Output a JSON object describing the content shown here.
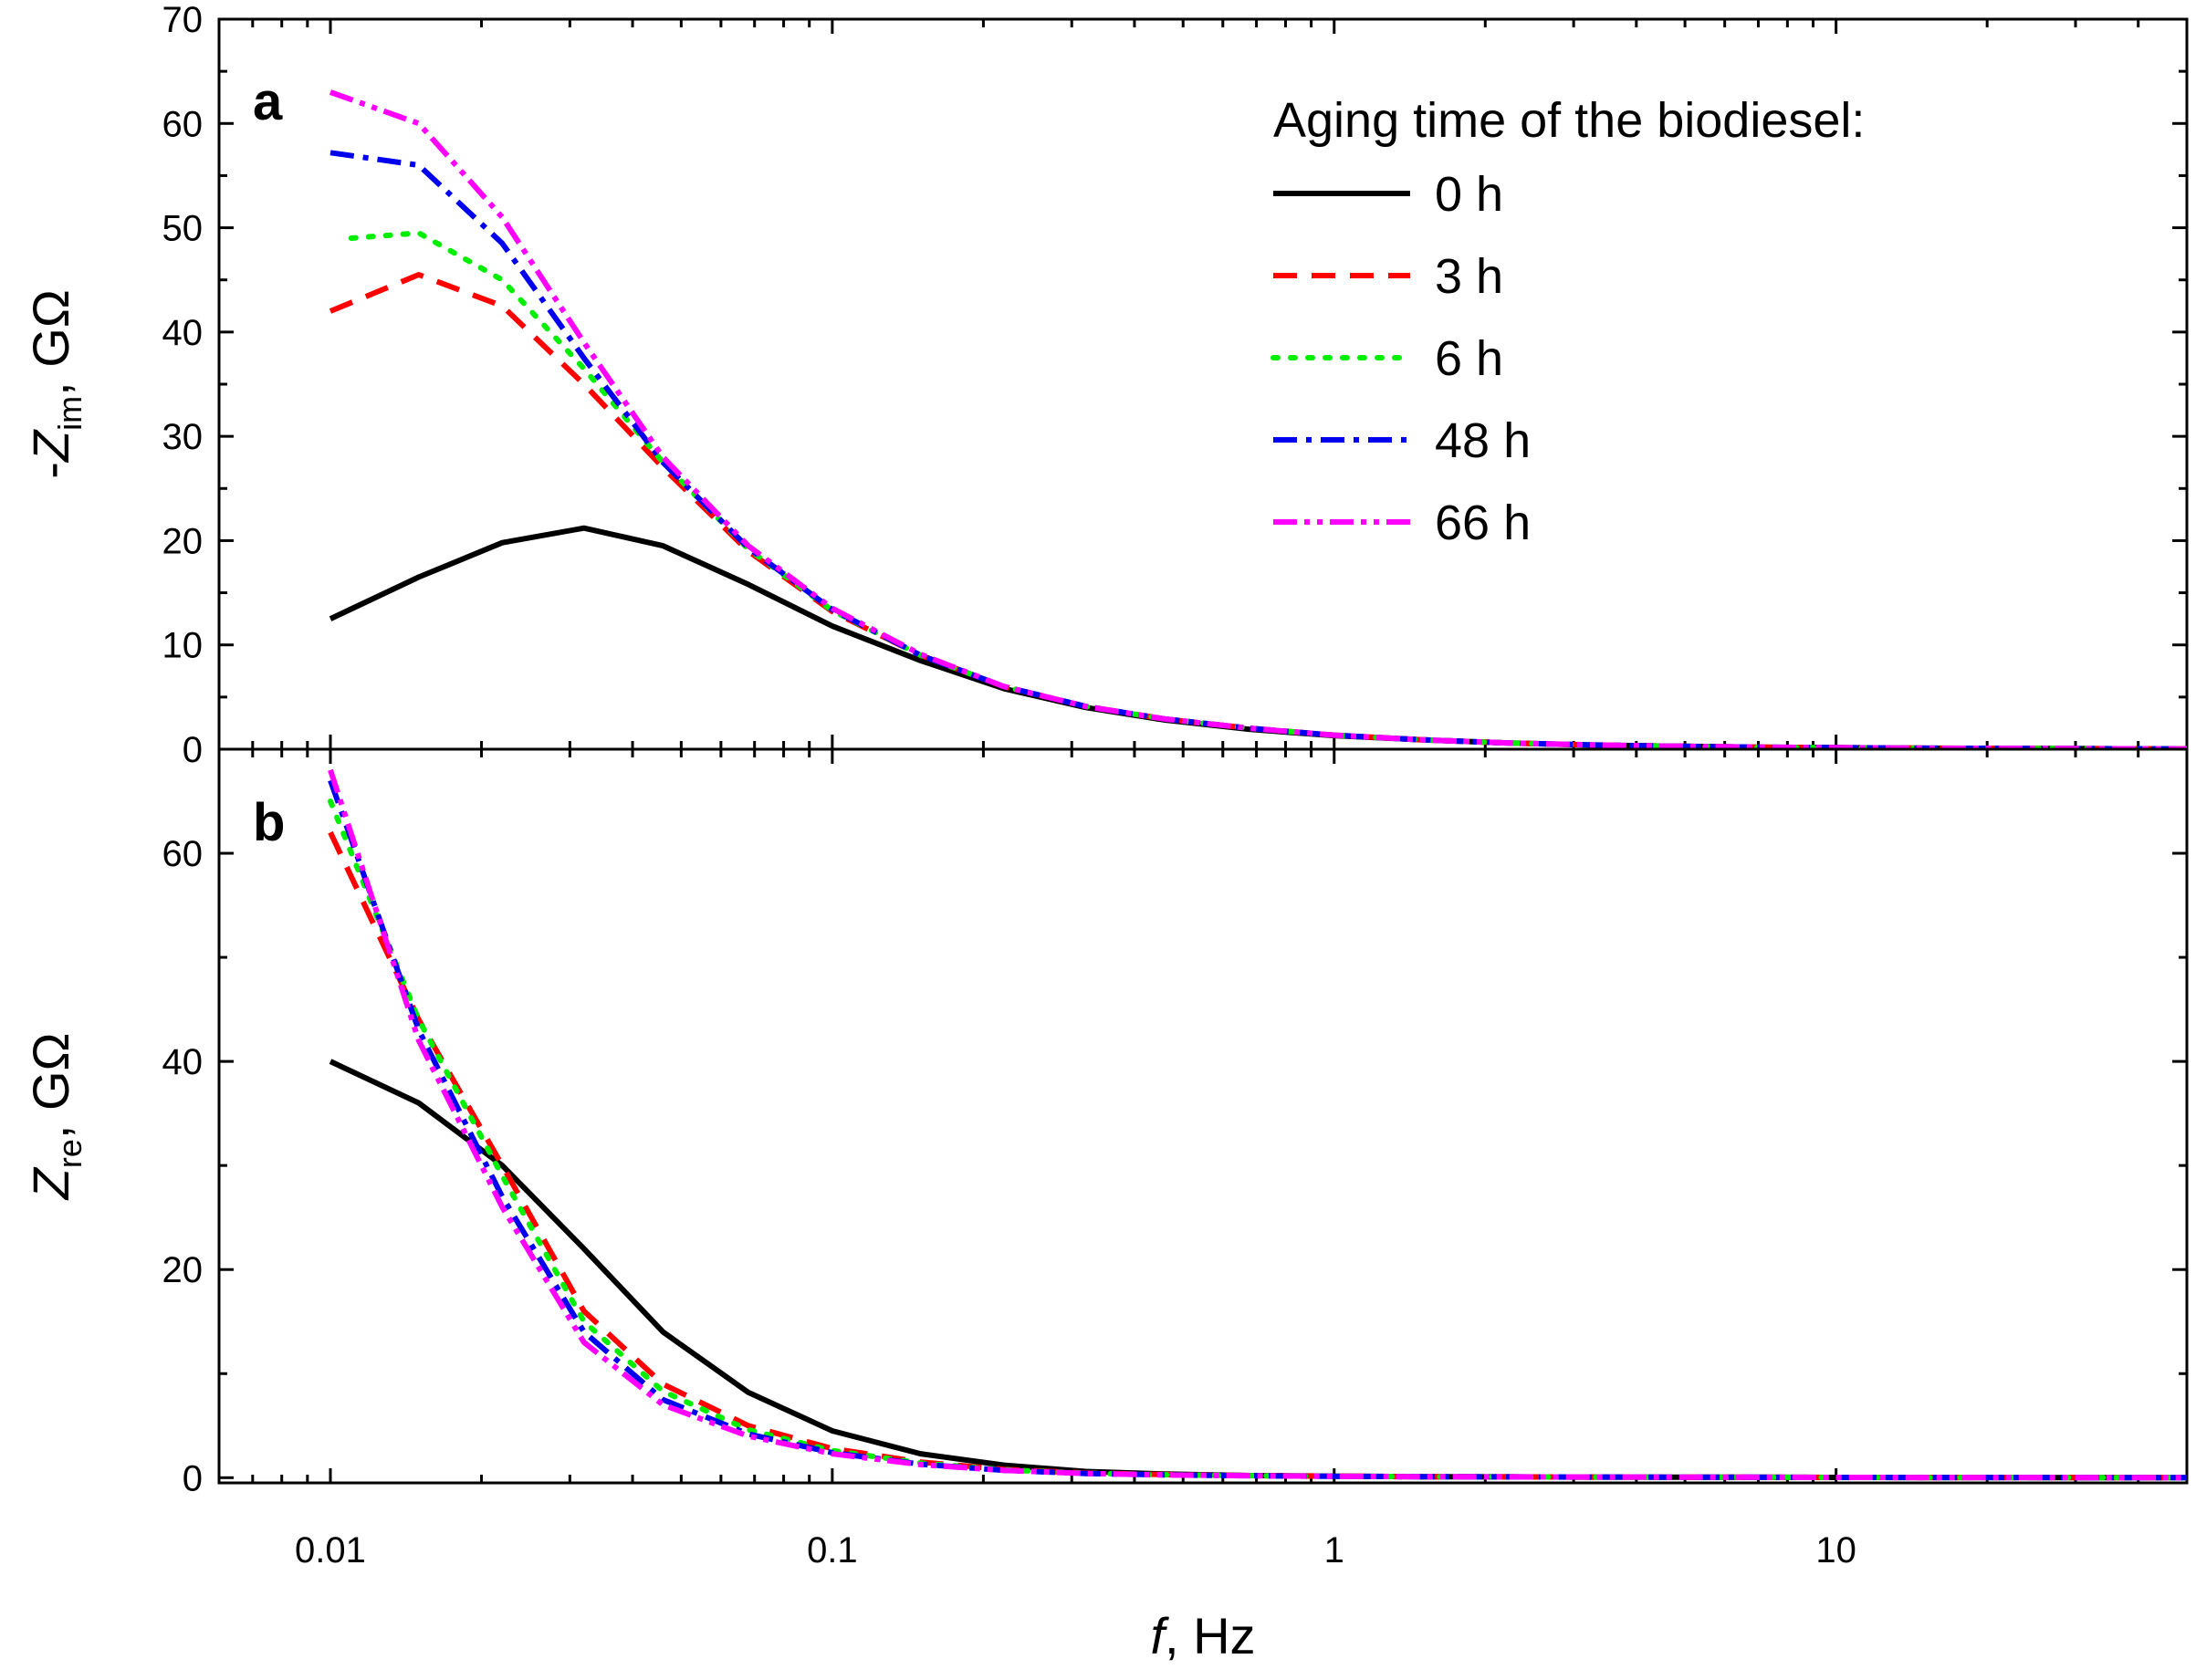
{
  "chart_data": [
    {
      "panel": "a",
      "type": "line",
      "x_scale": "log",
      "xlim": [
        0.006,
        50
      ],
      "ylim": [
        0,
        70
      ],
      "yticks": [
        0,
        10,
        20,
        30,
        40,
        50,
        60,
        70
      ],
      "ylabel": {
        "prefix": "-",
        "main": "Z",
        "sub": "im",
        "suffix": ",  GΩ"
      },
      "series": [
        {
          "name": "0 h",
          "color": "#000000",
          "dash": "none",
          "x": [
            0.01,
            0.015,
            0.022,
            0.032,
            0.046,
            0.068,
            0.1,
            0.15,
            0.22,
            0.32,
            0.46,
            0.68,
            1,
            1.5,
            2.2,
            3.2,
            4.6,
            6.8,
            10,
            15,
            22,
            32,
            50
          ],
          "y": [
            12.5,
            16.5,
            19.8,
            21.2,
            19.5,
            15.8,
            11.8,
            8.5,
            5.8,
            4.0,
            2.8,
            1.9,
            1.3,
            0.9,
            0.6,
            0.4,
            0.3,
            0.2,
            0.15,
            0.1,
            0.08,
            0.05,
            0.03
          ]
        },
        {
          "name": "3 h",
          "color": "#ff0000",
          "dash": "26,16",
          "x": [
            0.01,
            0.015,
            0.022,
            0.032,
            0.046,
            0.068,
            0.1,
            0.15,
            0.22,
            0.32,
            0.46,
            0.68,
            1,
            1.5,
            2.2,
            3.2,
            4.6,
            6.8,
            10,
            15,
            22,
            32,
            50
          ],
          "y": [
            42,
            45.5,
            42.5,
            35,
            27,
            19,
            13.2,
            9.0,
            6.0,
            4.1,
            2.9,
            2.0,
            1.35,
            0.9,
            0.6,
            0.42,
            0.3,
            0.2,
            0.15,
            0.1,
            0.08,
            0.05,
            0.03
          ]
        },
        {
          "name": "6 h",
          "color": "#00ee00",
          "dash": "5,14",
          "x": [
            0.011,
            0.015,
            0.022,
            0.032,
            0.046,
            0.068,
            0.1,
            0.15,
            0.22,
            0.32,
            0.46,
            0.68,
            1,
            1.5,
            2.2,
            3.2,
            4.6,
            6.8,
            10,
            15,
            22,
            32,
            50
          ],
          "y": [
            49,
            49.5,
            45,
            36.5,
            27.5,
            19.2,
            13.3,
            9.0,
            6.0,
            4.1,
            2.9,
            2.0,
            1.35,
            0.9,
            0.6,
            0.42,
            0.3,
            0.2,
            0.15,
            0.1,
            0.08,
            0.05,
            0.03
          ]
        },
        {
          "name": "48 h",
          "color": "#0000ee",
          "dash": "26,10,6,10",
          "x": [
            0.01,
            0.015,
            0.022,
            0.032,
            0.046,
            0.068,
            0.1,
            0.15,
            0.22,
            0.32,
            0.46,
            0.68,
            1,
            1.5,
            2.2,
            3.2,
            4.6,
            6.8,
            10,
            15,
            22,
            32,
            50
          ],
          "y": [
            57.2,
            56,
            48.5,
            37.5,
            27.5,
            19.3,
            13.4,
            9.0,
            6.0,
            4.1,
            2.9,
            2.0,
            1.35,
            0.9,
            0.6,
            0.42,
            0.3,
            0.2,
            0.15,
            0.1,
            0.08,
            0.05,
            0.03
          ]
        },
        {
          "name": "66 h",
          "color": "#ff00ff",
          "dash": "26,8,6,8,6,8",
          "x": [
            0.01,
            0.015,
            0.022,
            0.032,
            0.046,
            0.068,
            0.1,
            0.15,
            0.22,
            0.32,
            0.46,
            0.68,
            1,
            1.5,
            2.2,
            3.2,
            4.6,
            6.8,
            10,
            15,
            22,
            32,
            50
          ],
          "y": [
            63,
            60,
            51,
            39,
            28,
            19.5,
            13.5,
            9.1,
            6.0,
            4.1,
            2.9,
            2.0,
            1.35,
            0.9,
            0.6,
            0.42,
            0.3,
            0.2,
            0.15,
            0.1,
            0.08,
            0.05,
            0.03
          ]
        }
      ],
      "legend": {
        "title": "Aging time of the biodiesel:",
        "position": "top-right",
        "entries": [
          "0 h",
          "3 h",
          "6 h",
          "48 h",
          "66 h"
        ]
      }
    },
    {
      "panel": "b",
      "type": "line",
      "x_scale": "log",
      "xlim": [
        0.006,
        50
      ],
      "ylim": [
        -0.5,
        70
      ],
      "yticks": [
        0,
        20,
        40,
        60
      ],
      "ylabel": {
        "prefix": "",
        "main": "Z",
        "sub": "re",
        "suffix": ",  GΩ"
      },
      "series": [
        {
          "name": "0 h",
          "color": "#000000",
          "dash": "none",
          "x": [
            0.01,
            0.015,
            0.022,
            0.032,
            0.046,
            0.068,
            0.1,
            0.15,
            0.22,
            0.32,
            0.46,
            0.68,
            1,
            1.5,
            2.2,
            3.2,
            4.6,
            6.8,
            10,
            15,
            22,
            32,
            50
          ],
          "y": [
            40,
            36,
            30,
            22,
            14,
            8.2,
            4.5,
            2.3,
            1.2,
            0.6,
            0.35,
            0.2,
            0.15,
            0.1,
            0.08,
            0.06,
            0.05,
            0.04,
            0.03,
            0.02,
            0.02,
            0.01,
            0.01
          ]
        },
        {
          "name": "3 h",
          "color": "#ff0000",
          "dash": "26,16",
          "x": [
            0.01,
            0.015,
            0.022,
            0.032,
            0.046,
            0.068,
            0.1,
            0.15,
            0.22,
            0.32,
            0.46,
            0.68,
            1,
            1.5,
            2.2,
            3.2,
            4.6,
            6.8,
            10,
            15,
            22,
            32,
            50
          ],
          "y": [
            62,
            44,
            30,
            16,
            9,
            5,
            2.8,
            1.5,
            0.8,
            0.45,
            0.3,
            0.2,
            0.15,
            0.1,
            0.08,
            0.06,
            0.05,
            0.04,
            0.03,
            0.02,
            0.02,
            0.01,
            0.01
          ]
        },
        {
          "name": "6 h",
          "color": "#00ee00",
          "dash": "5,14",
          "x": [
            0.01,
            0.015,
            0.022,
            0.032,
            0.046,
            0.068,
            0.1,
            0.15,
            0.22,
            0.32,
            0.46,
            0.68,
            1,
            1.5,
            2.2,
            3.2,
            4.6,
            6.8,
            10,
            15,
            22,
            32,
            50
          ],
          "y": [
            65,
            44,
            29,
            15,
            8.3,
            4.6,
            2.6,
            1.4,
            0.75,
            0.42,
            0.28,
            0.19,
            0.14,
            0.1,
            0.08,
            0.06,
            0.05,
            0.04,
            0.03,
            0.02,
            0.02,
            0.01,
            0.01
          ]
        },
        {
          "name": "48 h",
          "color": "#0000ee",
          "dash": "26,10,6,10",
          "x": [
            0.01,
            0.015,
            0.022,
            0.032,
            0.046,
            0.068,
            0.1,
            0.15,
            0.22,
            0.32,
            0.46,
            0.68,
            1,
            1.5,
            2.2,
            3.2,
            4.6,
            6.8,
            10,
            15,
            22,
            32,
            50
          ],
          "y": [
            67,
            43,
            27,
            14,
            7.5,
            4.2,
            2.4,
            1.3,
            0.7,
            0.4,
            0.27,
            0.18,
            0.13,
            0.1,
            0.08,
            0.06,
            0.05,
            0.04,
            0.03,
            0.02,
            0.02,
            0.01,
            0.01
          ]
        },
        {
          "name": "66 h",
          "color": "#ff00ff",
          "dash": "26,8,6,8,6,8",
          "x": [
            0.01,
            0.015,
            0.022,
            0.032,
            0.046,
            0.068,
            0.1,
            0.15,
            0.22,
            0.32,
            0.46,
            0.68,
            1,
            1.5,
            2.2,
            3.2,
            4.6,
            6.8,
            10,
            15,
            22,
            32,
            50
          ],
          "y": [
            68,
            42,
            26,
            13,
            7,
            4.0,
            2.3,
            1.25,
            0.7,
            0.4,
            0.26,
            0.18,
            0.13,
            0.1,
            0.08,
            0.06,
            0.05,
            0.04,
            0.03,
            0.02,
            0.02,
            0.01,
            0.01
          ]
        }
      ]
    }
  ],
  "x_axis": {
    "ticks": [
      {
        "value": 0.01,
        "label": "0.01"
      },
      {
        "value": 0.1,
        "label": "0.1"
      },
      {
        "value": 1,
        "label": "1"
      },
      {
        "value": 10,
        "label": "10"
      }
    ],
    "label_main": "f",
    "label_suffix": ",  Hz"
  }
}
